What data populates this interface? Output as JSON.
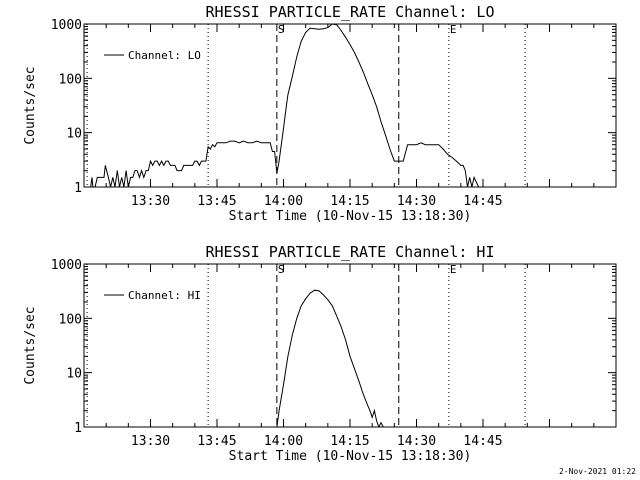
{
  "chart_data": [
    {
      "type": "line",
      "title": "RHESSI PARTICLE_RATE Channel: LO",
      "xlabel": "Start Time (10-Nov-15 13:18:30)",
      "ylabel": "Counts/sec",
      "y_scale": "log",
      "ylim": [
        1,
        1000
      ],
      "xlim_minutes": [
        -15,
        105
      ],
      "x_ticks": [
        "13:30",
        "13:45",
        "14:00",
        "14:15",
        "14:30",
        "14:45"
      ],
      "x_tick_minutes": [
        0,
        15,
        30,
        45,
        60,
        75
      ],
      "y_ticks": [
        "1",
        "10",
        "100",
        "1000"
      ],
      "y_tick_values": [
        1,
        10,
        100,
        1000
      ],
      "legend": {
        "label": "Channel: LO",
        "position": "top-left"
      },
      "markers": [
        {
          "label": "S",
          "minute": 28.5,
          "style": "dashed"
        },
        {
          "label": "",
          "minute": 56,
          "style": "dashed"
        },
        {
          "label": "E",
          "minute": 67.3,
          "style": "dotted"
        },
        {
          "label": "",
          "minute": 13,
          "style": "dotted"
        },
        {
          "label": "",
          "minute": 84.5,
          "style": "dotted"
        },
        {
          "label": "",
          "minute": -14.3,
          "style": "dotted"
        }
      ],
      "series": [
        {
          "name": "Channel: LO",
          "minutes": [
            -14.3,
            -13.5,
            -13.2,
            -13,
            -12.5,
            -12,
            -11,
            -10.5,
            -10.2,
            -9.5,
            -9,
            -8.5,
            -8,
            -7.5,
            -7,
            -6.5,
            -6,
            -5.5,
            -5,
            -4.5,
            -4,
            -3.5,
            -3,
            -2.5,
            -2,
            -1.5,
            -1,
            -0.5,
            0,
            0.5,
            1,
            1.5,
            2,
            2.5,
            3,
            3.5,
            4,
            4.5,
            5,
            5.5,
            6,
            6.5,
            7,
            7.5,
            8,
            8.5,
            9,
            9.5,
            10,
            10.5,
            11,
            11.5,
            12,
            12.5,
            13,
            13.5,
            14,
            14.5,
            15,
            16,
            17,
            18,
            19,
            20,
            21,
            22,
            23,
            24,
            25,
            26,
            27,
            27.5,
            28,
            28.5,
            29,
            29.5,
            30,
            30.5,
            31,
            32,
            33,
            34,
            35,
            36,
            37,
            38,
            39,
            40,
            41,
            42,
            43,
            44,
            45,
            46,
            47,
            48,
            49,
            50,
            51,
            52,
            53,
            54,
            55,
            56,
            57,
            58,
            59,
            60,
            61,
            62,
            63,
            64,
            65,
            66,
            67,
            68,
            69,
            70,
            70.5,
            71,
            71.5,
            72,
            72.5,
            73,
            74,
            75,
            76,
            77,
            78,
            79,
            80,
            81,
            82,
            83,
            84,
            85,
            86,
            87,
            88,
            89,
            90,
            91,
            92,
            93,
            94,
            95,
            96,
            97,
            98,
            99,
            100,
            101,
            102,
            103,
            104,
            105
          ],
          "values": [
            1,
            1,
            1.5,
            1,
            1,
            1.5,
            1.5,
            1.5,
            2.5,
            1.5,
            1,
            1.5,
            1,
            2,
            1,
            1.5,
            1,
            2,
            1,
            1.5,
            1.5,
            2,
            2,
            1.5,
            2,
            1.5,
            2,
            2,
            3,
            2.5,
            3,
            3,
            2.5,
            3,
            2.5,
            3,
            3,
            2.5,
            2.5,
            2.5,
            2,
            2,
            2,
            2.5,
            2.5,
            2.5,
            2.5,
            2.5,
            3,
            3,
            2.5,
            3,
            3,
            3,
            5.5,
            5,
            6,
            5.5,
            6.5,
            6.5,
            6.5,
            7,
            7,
            6.5,
            7,
            6.5,
            6.5,
            7,
            6.5,
            6.5,
            6.5,
            4.5,
            4.5,
            1.8,
            3,
            6,
            12,
            25,
            50,
            110,
            250,
            480,
            700,
            840,
            820,
            800,
            820,
            860,
            1000,
            970,
            760,
            570,
            420,
            300,
            200,
            130,
            80,
            50,
            30,
            16,
            9,
            5,
            3,
            3,
            3,
            6,
            6,
            6,
            6.5,
            6,
            6,
            6,
            6,
            5,
            4,
            3.5,
            3,
            2.5,
            2.5,
            2,
            1,
            1.5,
            1,
            1.5,
            1,
            1,
            1,
            1,
            1,
            1,
            1,
            1,
            1,
            1,
            1,
            1,
            1,
            1,
            1,
            1,
            1,
            1,
            1,
            1,
            1,
            1,
            1,
            1,
            1,
            1,
            1,
            1,
            1,
            1,
            1,
            1,
            1,
            1
          ],
          "color": "#000000"
        }
      ]
    },
    {
      "type": "line",
      "title": "RHESSI PARTICLE_RATE Channel: HI",
      "xlabel": "Start Time (10-Nov-15 13:18:30)",
      "ylabel": "Counts/sec",
      "y_scale": "log",
      "ylim": [
        1,
        1000
      ],
      "xlim_minutes": [
        -15,
        105
      ],
      "x_ticks": [
        "13:30",
        "13:45",
        "14:00",
        "14:15",
        "14:30",
        "14:45"
      ],
      "x_tick_minutes": [
        0,
        15,
        30,
        45,
        60,
        75
      ],
      "y_ticks": [
        "1",
        "10",
        "100",
        "1000"
      ],
      "y_tick_values": [
        1,
        10,
        100,
        1000
      ],
      "legend": {
        "label": "Channel: HI",
        "position": "top-left"
      },
      "markers": [
        {
          "label": "S",
          "minute": 28.5,
          "style": "dashed"
        },
        {
          "label": "",
          "minute": 56,
          "style": "dashed"
        },
        {
          "label": "E",
          "minute": 67.3,
          "style": "dotted"
        },
        {
          "label": "",
          "minute": 13,
          "style": "dotted"
        },
        {
          "label": "",
          "minute": 84.5,
          "style": "dotted"
        },
        {
          "label": "",
          "minute": -14.3,
          "style": "dotted"
        }
      ],
      "series": [
        {
          "name": "Channel: HI",
          "minutes": [
            28.5,
            29,
            30,
            31,
            32,
            33,
            34,
            35,
            36,
            37,
            38,
            39,
            40,
            41,
            42,
            43,
            44,
            45,
            46,
            47,
            48,
            49,
            49.5,
            50,
            50.5,
            51,
            51.5,
            52,
            52.5
          ],
          "values": [
            1,
            2,
            6,
            20,
            50,
            100,
            170,
            230,
            290,
            330,
            320,
            270,
            220,
            170,
            110,
            70,
            40,
            20,
            12,
            7,
            4,
            2.5,
            2,
            1.5,
            2,
            1.3,
            1,
            1.2,
            1
          ],
          "color": "#000000"
        }
      ]
    }
  ],
  "footer": {
    "timestamp": "2-Nov-2021 01:22"
  }
}
